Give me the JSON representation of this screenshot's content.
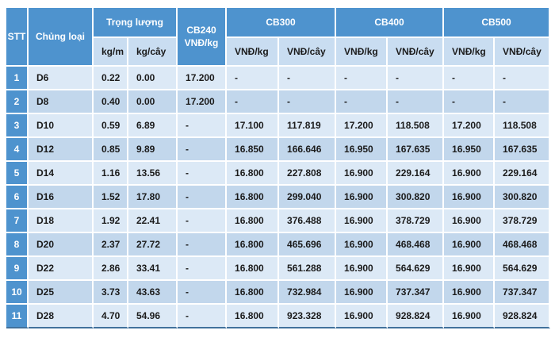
{
  "table": {
    "header": {
      "stt": "STT",
      "chung_loai": "Chủng loại",
      "trong_luong": "Trọng lượng",
      "kg_m": "kg/m",
      "kg_cay": "kg/cây",
      "cb240_line1": "CB240",
      "cb240_line2": "VNĐ/kg",
      "cb300": "CB300",
      "cb400": "CB400",
      "cb500": "CB500",
      "vnd_kg": "VNĐ/kg",
      "vnd_cay": "VNĐ/cây"
    },
    "rows": [
      {
        "stt": "1",
        "size": "D6",
        "kg_m": "0.22",
        "kg_cay": "0.00",
        "cb240": "17.200",
        "cb300_kg": "-",
        "cb300_cay": "-",
        "cb400_kg": "-",
        "cb400_cay": "-",
        "cb500_kg": "-",
        "cb500_cay": "-"
      },
      {
        "stt": "2",
        "size": "D8",
        "kg_m": "0.40",
        "kg_cay": "0.00",
        "cb240": "17.200",
        "cb300_kg": "-",
        "cb300_cay": "-",
        "cb400_kg": "-",
        "cb400_cay": "-",
        "cb500_kg": "-",
        "cb500_cay": "-"
      },
      {
        "stt": "3",
        "size": "D10",
        "kg_m": "0.59",
        "kg_cay": "6.89",
        "cb240": "-",
        "cb300_kg": "17.100",
        "cb300_cay": "117.819",
        "cb400_kg": "17.200",
        "cb400_cay": "118.508",
        "cb500_kg": "17.200",
        "cb500_cay": "118.508"
      },
      {
        "stt": "4",
        "size": "D12",
        "kg_m": "0.85",
        "kg_cay": "9.89",
        "cb240": "-",
        "cb300_kg": "16.850",
        "cb300_cay": "166.646",
        "cb400_kg": "16.950",
        "cb400_cay": "167.635",
        "cb500_kg": "16.950",
        "cb500_cay": "167.635"
      },
      {
        "stt": "5",
        "size": "D14",
        "kg_m": "1.16",
        "kg_cay": "13.56",
        "cb240": "-",
        "cb300_kg": "16.800",
        "cb300_cay": "227.808",
        "cb400_kg": "16.900",
        "cb400_cay": "229.164",
        "cb500_kg": "16.900",
        "cb500_cay": "229.164"
      },
      {
        "stt": "6",
        "size": "D16",
        "kg_m": "1.52",
        "kg_cay": "17.80",
        "cb240": "-",
        "cb300_kg": "16.800",
        "cb300_cay": "299.040",
        "cb400_kg": "16.900",
        "cb400_cay": "300.820",
        "cb500_kg": "16.900",
        "cb500_cay": "300.820"
      },
      {
        "stt": "7",
        "size": "D18",
        "kg_m": "1.92",
        "kg_cay": "22.41",
        "cb240": "-",
        "cb300_kg": "16.800",
        "cb300_cay": "376.488",
        "cb400_kg": "16.900",
        "cb400_cay": "378.729",
        "cb500_kg": "16.900",
        "cb500_cay": "378.729"
      },
      {
        "stt": "8",
        "size": "D20",
        "kg_m": "2.37",
        "kg_cay": "27.72",
        "cb240": "-",
        "cb300_kg": "16.800",
        "cb300_cay": "465.696",
        "cb400_kg": "16.900",
        "cb400_cay": "468.468",
        "cb500_kg": "16.900",
        "cb500_cay": "468.468"
      },
      {
        "stt": "9",
        "size": "D22",
        "kg_m": "2.86",
        "kg_cay": "33.41",
        "cb240": "-",
        "cb300_kg": "16.800",
        "cb300_cay": "561.288",
        "cb400_kg": "16.900",
        "cb400_cay": "564.629",
        "cb500_kg": "16.900",
        "cb500_cay": "564.629"
      },
      {
        "stt": "10",
        "size": "D25",
        "kg_m": "3.73",
        "kg_cay": "43.63",
        "cb240": "-",
        "cb300_kg": "16.800",
        "cb300_cay": "732.984",
        "cb400_kg": "16.900",
        "cb400_cay": "737.347",
        "cb500_kg": "16.900",
        "cb500_cay": "737.347"
      },
      {
        "stt": "11",
        "size": "D28",
        "kg_m": "4.70",
        "kg_cay": "54.96",
        "cb240": "-",
        "cb300_kg": "16.800",
        "cb300_cay": "923.328",
        "cb400_kg": "16.900",
        "cb400_cay": "928.824",
        "cb500_kg": "16.900",
        "cb500_cay": "928.824"
      }
    ]
  },
  "colors": {
    "header_blue": "#4e93ce",
    "subheader_blue": "#c9ddf1",
    "row_light": "#dce9f6",
    "row_dark": "#c2d7ec",
    "bottom_border": "#41719c",
    "dark_text": "#1b1b1b"
  }
}
